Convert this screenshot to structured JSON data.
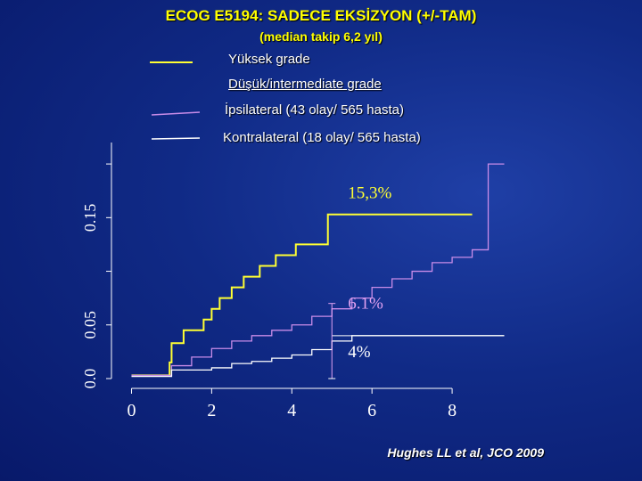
{
  "title": "ECOG E5194:  SADECE EKSİZYON  (+/-TAM)",
  "subtitle": "(median takip 6,2 yıl)",
  "legend": [
    {
      "label": "Yüksek grade",
      "color": "#ffff33",
      "swatch": true
    },
    {
      "label": "Düşük/intermediate grade",
      "color": "#ffffff",
      "swatch": false
    },
    {
      "label": "İpsilateral (43 olay/ 565 hasta)",
      "color": "#c98ce8",
      "swatch": true
    },
    {
      "label": "Kontralateral (18 olay/ 565 hasta)",
      "color": "#ffffff",
      "swatch": true
    }
  ],
  "source": "Hughes LL et al, JCO 2009",
  "colors": {
    "high_grade": "#ffff33",
    "low_grade": "#c98ce8",
    "low_grade_contralateral": "#ffffff",
    "axis": "#ffffff"
  },
  "chart_data": {
    "type": "line",
    "step": true,
    "xlabel": "",
    "ylabel": "",
    "xlim": [
      -0.5,
      9.4
    ],
    "ylim": [
      0.0,
      0.22
    ],
    "x_ticks": [
      0,
      2,
      4,
      6,
      8
    ],
    "y_ticks": [
      0.0,
      0.05,
      0.15
    ],
    "y_tick_labels": [
      "0.0",
      "0.05",
      "0.15"
    ],
    "series": [
      {
        "key": "high_grade",
        "x": [
          0.0,
          0.9,
          0.95,
          1.0,
          1.3,
          1.8,
          2.0,
          2.2,
          2.5,
          2.8,
          3.2,
          3.6,
          4.1,
          4.9,
          8.5
        ],
        "y": [
          0.003,
          0.003,
          0.015,
          0.033,
          0.045,
          0.055,
          0.065,
          0.075,
          0.085,
          0.095,
          0.105,
          0.115,
          0.125,
          0.153,
          0.153
        ]
      },
      {
        "key": "low_grade",
        "x": [
          0.0,
          0.8,
          1.0,
          1.5,
          2.0,
          2.5,
          3.0,
          3.5,
          4.0,
          4.5,
          5.0,
          5.5,
          6.0,
          6.5,
          7.0,
          7.5,
          8.0,
          8.5,
          8.9,
          9.3
        ],
        "y": [
          0.003,
          0.003,
          0.012,
          0.02,
          0.028,
          0.035,
          0.04,
          0.045,
          0.05,
          0.058,
          0.065,
          0.075,
          0.085,
          0.093,
          0.1,
          0.108,
          0.113,
          0.12,
          0.2,
          0.2
        ]
      },
      {
        "key": "low_grade_contralateral",
        "x": [
          0.0,
          1.0,
          2.0,
          2.5,
          3.0,
          3.5,
          4.0,
          4.5,
          5.0,
          5.5,
          6.0,
          9.3
        ],
        "y": [
          0.002,
          0.008,
          0.01,
          0.014,
          0.016,
          0.019,
          0.022,
          0.027,
          0.035,
          0.04,
          0.04,
          0.04
        ]
      }
    ],
    "annotations": [
      {
        "text": "15,3%",
        "x": 5.4,
        "y": 0.168,
        "color": "#ffff33"
      },
      {
        "text": "6.1%",
        "x": 5.4,
        "y": 0.065,
        "color": "#e0a0f0"
      },
      {
        "text": "4%",
        "x": 5.4,
        "y": 0.02,
        "color": "#ffffff"
      }
    ]
  }
}
